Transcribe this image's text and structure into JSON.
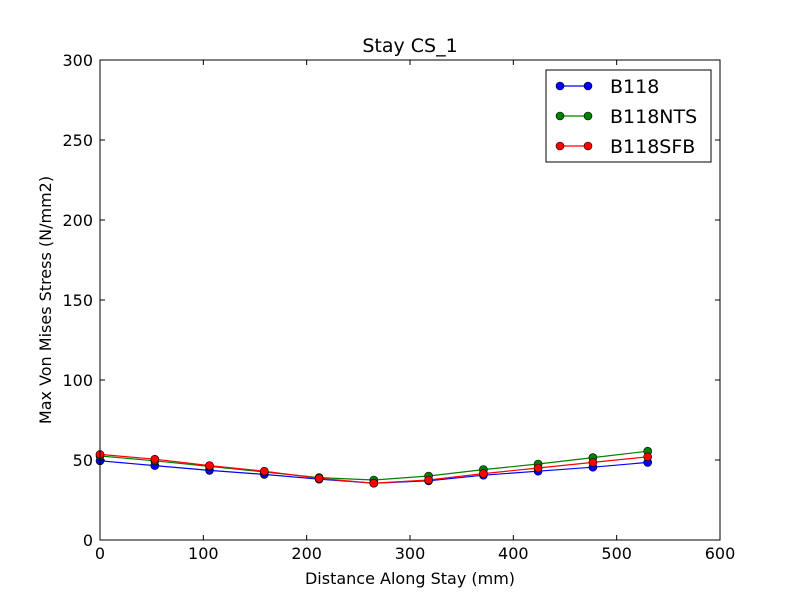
{
  "chart_data": {
    "type": "line",
    "title": "Stay CS_1",
    "xlabel": "Distance Along Stay (mm)",
    "ylabel": "Max Von Mises Stress (N/mm2)",
    "xlim": [
      0,
      600
    ],
    "ylim": [
      0,
      300
    ],
    "xticks": [
      "0",
      "100",
      "200",
      "300",
      "400",
      "500",
      "600"
    ],
    "yticks": [
      "0",
      "50",
      "100",
      "150",
      "200",
      "250",
      "300"
    ],
    "grid": false,
    "legend_position": "top-right",
    "x": [
      0,
      53,
      106,
      159,
      212,
      265,
      318,
      371,
      424,
      477,
      530
    ],
    "series": [
      {
        "name": "B118",
        "color": "#0000ff",
        "marker": "circle",
        "values": [
          49.5,
          46.5,
          43.5,
          41,
          38,
          35.5,
          37,
          40.5,
          43,
          45.5,
          48.5
        ]
      },
      {
        "name": "B118NTS",
        "color": "#008000",
        "marker": "circle",
        "values": [
          52.5,
          49.5,
          46,
          42.5,
          39,
          37.5,
          40,
          44,
          47.5,
          51.5,
          55.5
        ]
      },
      {
        "name": "B118SFB",
        "color": "#ff0000",
        "marker": "circle",
        "values": [
          53.5,
          50.5,
          46.5,
          43,
          38.5,
          35.5,
          37.5,
          41.5,
          45,
          48.5,
          52
        ]
      }
    ]
  }
}
